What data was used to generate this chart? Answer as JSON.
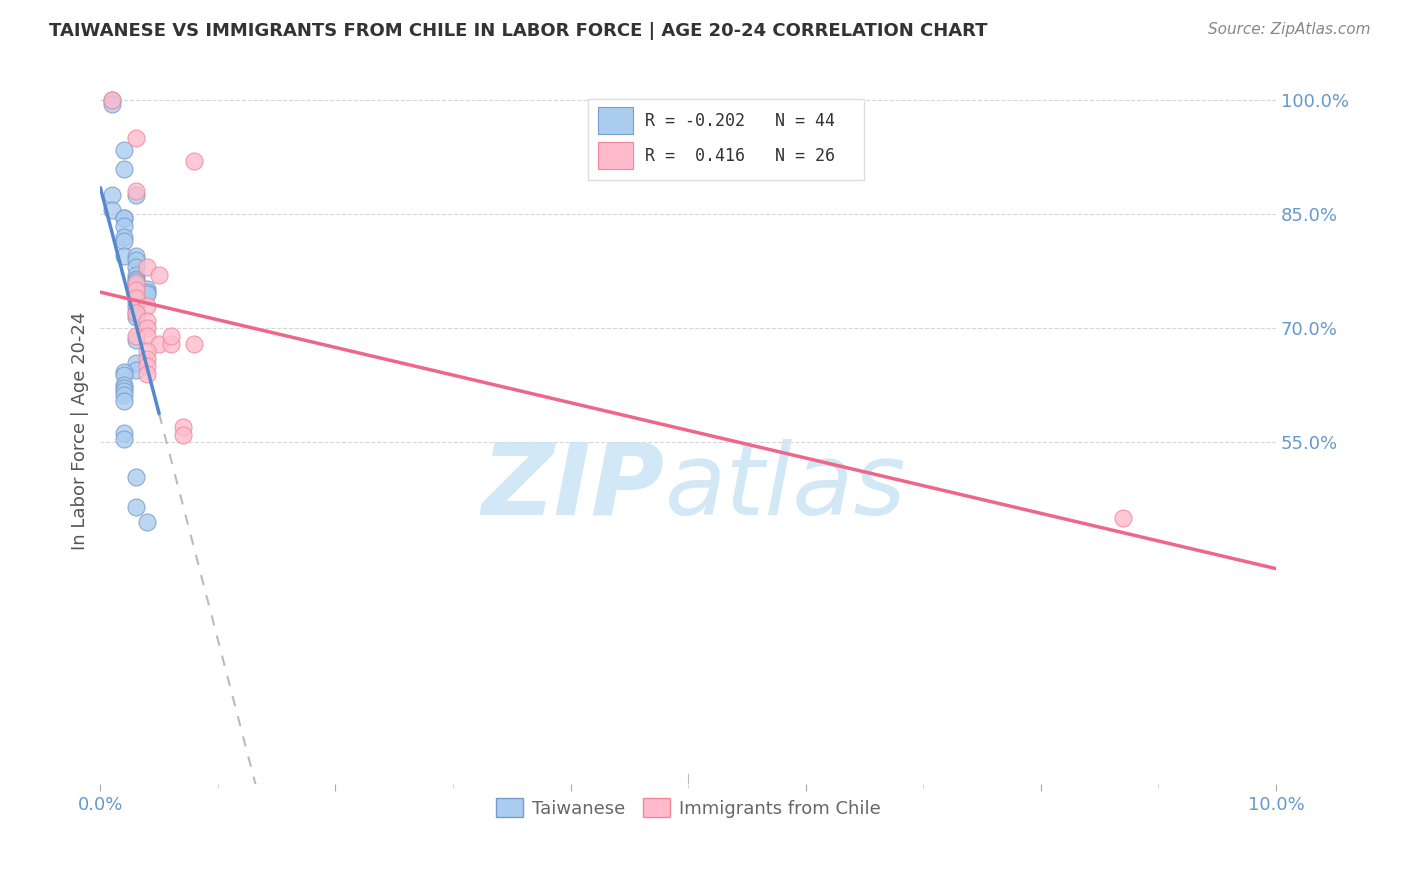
{
  "title": "TAIWANESE VS IMMIGRANTS FROM CHILE IN LABOR FORCE | AGE 20-24 CORRELATION CHART",
  "source": "Source: ZipAtlas.com",
  "ylabel": "In Labor Force | Age 20-24",
  "xlim": [
    0.0,
    0.1
  ],
  "ylim": [
    0.1,
    1.03
  ],
  "yticks": [
    0.55,
    0.7,
    0.85,
    1.0
  ],
  "ytick_labels": [
    "55.0%",
    "70.0%",
    "85.0%",
    "100.0%"
  ],
  "taiwanese_x": [
    0.001,
    0.001,
    0.002,
    0.002,
    0.003,
    0.001,
    0.001,
    0.002,
    0.002,
    0.002,
    0.002,
    0.002,
    0.002,
    0.003,
    0.003,
    0.003,
    0.003,
    0.003,
    0.003,
    0.003,
    0.003,
    0.004,
    0.004,
    0.004,
    0.003,
    0.003,
    0.003,
    0.003,
    0.003,
    0.003,
    0.003,
    0.003,
    0.002,
    0.002,
    0.002,
    0.002,
    0.002,
    0.002,
    0.002,
    0.002,
    0.002,
    0.003,
    0.003,
    0.004
  ],
  "taiwanese_y": [
    1.0,
    0.995,
    0.935,
    0.91,
    0.875,
    0.875,
    0.855,
    0.845,
    0.845,
    0.835,
    0.82,
    0.815,
    0.795,
    0.795,
    0.79,
    0.78,
    0.77,
    0.765,
    0.762,
    0.758,
    0.755,
    0.752,
    0.748,
    0.745,
    0.74,
    0.735,
    0.728,
    0.722,
    0.715,
    0.685,
    0.655,
    0.645,
    0.642,
    0.638,
    0.625,
    0.622,
    0.618,
    0.612,
    0.605,
    0.562,
    0.555,
    0.505,
    0.465,
    0.445
  ],
  "chile_x": [
    0.001,
    0.003,
    0.003,
    0.004,
    0.005,
    0.003,
    0.003,
    0.003,
    0.004,
    0.003,
    0.004,
    0.004,
    0.003,
    0.004,
    0.005,
    0.006,
    0.004,
    0.004,
    0.004,
    0.004,
    0.006,
    0.008,
    0.087,
    0.007,
    0.007,
    0.008
  ],
  "chile_y": [
    1.0,
    0.95,
    0.88,
    0.78,
    0.77,
    0.76,
    0.75,
    0.74,
    0.73,
    0.72,
    0.71,
    0.7,
    0.69,
    0.69,
    0.68,
    0.68,
    0.67,
    0.66,
    0.65,
    0.64,
    0.69,
    0.68,
    0.45,
    0.57,
    0.56,
    0.92
  ],
  "r_taiwanese": -0.202,
  "n_taiwanese": 44,
  "r_chile": 0.416,
  "n_chile": 26,
  "blue_line_color": "#5588CC",
  "pink_line_color": "#EE6688",
  "blue_scatter_face": "#AACCEE",
  "blue_scatter_edge": "#7799CC",
  "pink_scatter_face": "#FFBBCC",
  "pink_scatter_edge": "#EE8899",
  "dash_color": "#BBBBBB",
  "grid_color": "#CCCCCC",
  "axis_tick_color": "#6699CC",
  "title_color": "#333333",
  "source_color": "#888888",
  "background_color": "#FFFFFF",
  "ylabel_color": "#555555",
  "watermark_zip_color": "#CCE4F5",
  "watermark_atlas_color": "#CCE4F5"
}
